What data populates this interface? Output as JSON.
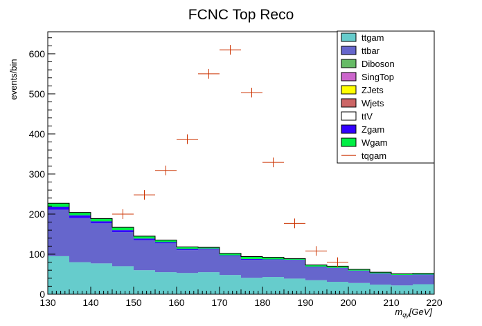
{
  "chart_data": {
    "type": "bar",
    "title": "FCNC Top Reco",
    "ylabel": "events/bin",
    "xlabel": "m_{qγ}[GeV]",
    "xlabel_main": "m",
    "xlabel_sub": "qγ",
    "xlabel_unit": "[GeV]",
    "stacked": true,
    "bin_edges": [
      130,
      135,
      140,
      145,
      150,
      155,
      160,
      165,
      170,
      175,
      180,
      185,
      190,
      195,
      200,
      205,
      210,
      215,
      220
    ],
    "xlim": [
      130,
      220
    ],
    "ylim": [
      0,
      655
    ],
    "x_ticks": [
      130,
      140,
      150,
      160,
      170,
      180,
      190,
      200,
      210,
      220
    ],
    "y_ticks": [
      0,
      100,
      200,
      300,
      400,
      500,
      600
    ],
    "legend_position": "top-right",
    "series": [
      {
        "name": "ttgam",
        "color": "#66cccc",
        "values": [
          95,
          80,
          77,
          70,
          60,
          55,
          53,
          55,
          48,
          41,
          43,
          39,
          35,
          31,
          28,
          24,
          22,
          25
        ]
      },
      {
        "name": "ttbar",
        "color": "#6666cc",
        "values": [
          116,
          110,
          100,
          85,
          75,
          72,
          57,
          57,
          47,
          45,
          43,
          46,
          33,
          34,
          30,
          27,
          25,
          23
        ]
      },
      {
        "name": "Diboson",
        "color": "#66bb66",
        "values": [
          0,
          0,
          0,
          0,
          0,
          0,
          0,
          0,
          0,
          0,
          0,
          0,
          0,
          0,
          0,
          0,
          0,
          0
        ]
      },
      {
        "name": "SingTop",
        "color": "#cc66cc",
        "values": [
          0,
          0,
          0,
          0,
          0,
          0,
          0,
          0,
          0,
          0,
          0,
          0,
          0,
          0,
          0,
          0,
          0,
          0
        ]
      },
      {
        "name": "ZJets",
        "color": "#ffff00",
        "values": [
          0,
          0,
          0,
          0,
          0,
          0,
          0,
          0,
          0,
          0,
          0,
          0,
          0,
          0,
          0,
          0,
          0,
          0
        ]
      },
      {
        "name": "Wjets",
        "color": "#cc6666",
        "values": [
          0,
          0,
          0,
          0,
          0,
          0,
          0,
          0,
          0,
          0,
          0,
          0,
          0,
          0,
          0,
          0,
          0,
          0
        ]
      },
      {
        "name": "ttV",
        "color": "#ffffff",
        "values": [
          0,
          0,
          0,
          0,
          0,
          0,
          0,
          0,
          0,
          0,
          0,
          0,
          0,
          0,
          0,
          0,
          0,
          0
        ]
      },
      {
        "name": "Zgam",
        "color": "#3300ff",
        "values": [
          7,
          7,
          5,
          5,
          4,
          3,
          3,
          2,
          2,
          2,
          1,
          1,
          1,
          1,
          1,
          1,
          1,
          1
        ]
      },
      {
        "name": "Wgam",
        "color": "#00ee44",
        "values": [
          9,
          7,
          7,
          7,
          6,
          5,
          5,
          3,
          5,
          6,
          5,
          3,
          4,
          4,
          3,
          3,
          3,
          3
        ]
      }
    ],
    "signal": {
      "name": "tqgam",
      "color": "#cc3300",
      "x": [
        147.5,
        152.5,
        157.5,
        162.5,
        167.5,
        172.5,
        177.5,
        182.5,
        187.5,
        192.5,
        197.5
      ],
      "y": [
        200,
        248,
        309,
        387,
        550,
        610,
        503,
        329,
        177,
        108,
        80
      ]
    }
  }
}
